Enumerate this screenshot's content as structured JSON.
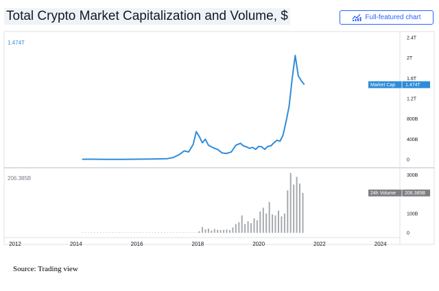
{
  "title": "Total Crypto Market Capitalization and Volume, $",
  "button": {
    "label": "Full-featured chart",
    "icon": "chart-icon"
  },
  "source": "Source: Trading view",
  "colors": {
    "line": "#2e8bd9",
    "volume_bar": "#a5a9ae",
    "badge_cap": "#2e8bd9",
    "badge_volume": "#7e8084",
    "button": "#2962ff"
  },
  "chart_data": [
    {
      "type": "line",
      "series": [
        {
          "name": "Market Cap",
          "x": [
            2014.2,
            2014.5,
            2015.0,
            2015.5,
            2016.0,
            2016.5,
            2017.0,
            2017.2,
            2017.4,
            2017.55,
            2017.7,
            2017.85,
            2017.95,
            2018.05,
            2018.15,
            2018.25,
            2018.35,
            2018.45,
            2018.55,
            2018.65,
            2018.8,
            2018.95,
            2019.1,
            2019.25,
            2019.4,
            2019.5,
            2019.6,
            2019.7,
            2019.8,
            2019.9,
            2020.0,
            2020.1,
            2020.2,
            2020.3,
            2020.4,
            2020.5,
            2020.6,
            2020.7,
            2020.8,
            2020.9,
            2021.0,
            2021.1,
            2021.2,
            2021.3,
            2021.4,
            2021.5
          ],
          "values": [
            0.005,
            0.007,
            0.004,
            0.003,
            0.007,
            0.01,
            0.018,
            0.04,
            0.1,
            0.17,
            0.15,
            0.3,
            0.55,
            0.45,
            0.33,
            0.4,
            0.28,
            0.25,
            0.22,
            0.2,
            0.13,
            0.12,
            0.15,
            0.28,
            0.32,
            0.27,
            0.25,
            0.22,
            0.24,
            0.2,
            0.26,
            0.25,
            0.2,
            0.26,
            0.27,
            0.33,
            0.38,
            0.36,
            0.48,
            0.75,
            1.05,
            1.6,
            2.05,
            1.65,
            1.55,
            1.474
          ]
        }
      ],
      "ylim": [
        0,
        2.4
      ],
      "y_ticks": [
        "0",
        "400B",
        "800B",
        "1.2T",
        "1.6T",
        "2T",
        "2.4T"
      ],
      "last_value_label": "1.474T",
      "last_value": 1.474
    },
    {
      "type": "bar",
      "series": [
        {
          "name": "24h Volume",
          "x": [
            2018.05,
            2018.15,
            2018.25,
            2018.35,
            2018.45,
            2018.55,
            2018.65,
            2018.75,
            2018.85,
            2018.95,
            2019.05,
            2019.15,
            2019.25,
            2019.35,
            2019.45,
            2019.55,
            2019.65,
            2019.75,
            2019.85,
            2019.95,
            2020.05,
            2020.15,
            2020.25,
            2020.35,
            2020.45,
            2020.55,
            2020.65,
            2020.75,
            2020.85,
            2020.95,
            2021.05,
            2021.15,
            2021.25,
            2021.35,
            2021.45
          ],
          "values": [
            8,
            30,
            18,
            22,
            12,
            20,
            16,
            14,
            15,
            17,
            14,
            28,
            45,
            55,
            90,
            45,
            60,
            50,
            75,
            65,
            110,
            130,
            100,
            160,
            95,
            90,
            115,
            85,
            100,
            220,
            310,
            250,
            290,
            255,
            206.385
          ]
        }
      ],
      "x_ticks": [
        2012,
        2014,
        2016,
        2018,
        2020,
        2022,
        2024
      ],
      "xlim": [
        2012,
        2024.3
      ],
      "ylim": [
        0,
        330
      ],
      "y_ticks": [
        "0",
        "100B",
        "300B"
      ],
      "y_tick_values": [
        0,
        100,
        300
      ],
      "last_value_label": "206.385B",
      "last_value": 206.385
    }
  ]
}
